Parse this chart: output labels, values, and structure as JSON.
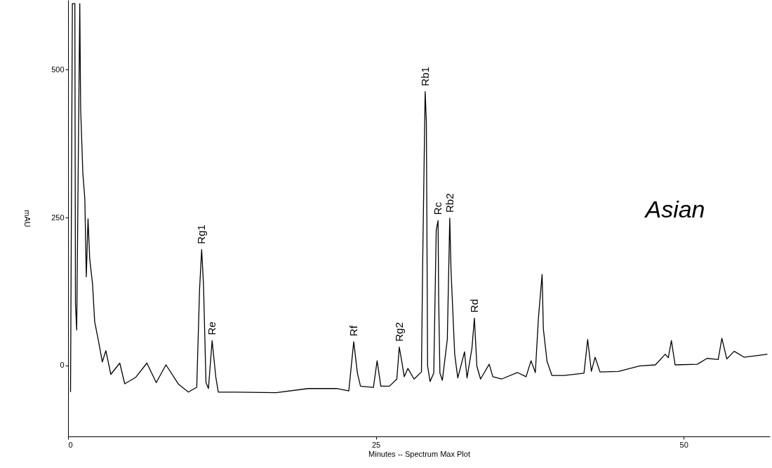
{
  "chart_data": {
    "type": "line",
    "xlabel": "Minutes -- Spectrum Max Plot",
    "ylabel": "mAU",
    "xlim": [
      0,
      57
    ],
    "ylim": [
      -120,
      618
    ],
    "xticks": [
      0,
      25,
      50
    ],
    "yticks": [
      0,
      250,
      500
    ],
    "line_style": "solid",
    "x": [
      0.2,
      0.35,
      0.55,
      0.6,
      0.7,
      0.95,
      1.02,
      1.2,
      1.36,
      1.48,
      1.62,
      1.76,
      1.99,
      2.16,
      2.49,
      2.78,
      3.07,
      3.47,
      4.2,
      4.6,
      5.5,
      6.4,
      7.16,
      7.95,
      8.98,
      9.77,
      10.45,
      10.68,
      10.85,
      11.0,
      11.2,
      11.4,
      11.7,
      12.0,
      12.2,
      13.6,
      16.9,
      19.5,
      21.8,
      22.8,
      23.2,
      23.5,
      23.75,
      24.8,
      25.1,
      25.4,
      26.1,
      26.7,
      26.9,
      27.1,
      27.3,
      27.6,
      28.1,
      28.7,
      28.8,
      29.0,
      29.1,
      29.2,
      29.4,
      29.7,
      29.9,
      30.05,
      30.1,
      30.2,
      30.4,
      30.8,
      31.0,
      31.1,
      31.4,
      31.65,
      32.2,
      32.4,
      32.8,
      33.0,
      33.2,
      33.5,
      34.2,
      34.5,
      35.2,
      36.5,
      37.2,
      37.6,
      37.95,
      38.2,
      38.5,
      38.6,
      38.9,
      39.3,
      40.3,
      41.9,
      42.2,
      42.5,
      42.8,
      43.2,
      44.7,
      46.4,
      47.7,
      48.5,
      48.75,
      49.0,
      49.3,
      51.1,
      51.9,
      52.8,
      53.1,
      53.5,
      54.1,
      54.9,
      56.8
    ],
    "series": [
      {
        "color": "#000000",
        "values": [
          -45,
          612,
          612,
          104,
          60,
          612,
          435,
          325,
          282,
          150,
          248,
          180,
          137,
          74,
          39,
          6,
          25,
          -15,
          4,
          -31,
          -20,
          4,
          -29,
          1,
          -32,
          -45,
          -37,
          129,
          196,
          136,
          -29,
          -39,
          42,
          -20,
          -45,
          -45,
          -46,
          -39,
          -39,
          -43,
          40,
          -13,
          -35,
          -37,
          8,
          -35,
          -35,
          -23,
          31,
          7,
          -19,
          -5,
          -23,
          -11,
          174,
          463,
          412,
          -1,
          -27,
          -13,
          229,
          245,
          110,
          -13,
          -25,
          44,
          249,
          162,
          19,
          -21,
          23,
          -21,
          29,
          80,
          -1,
          -23,
          2,
          -19,
          -23,
          -12,
          -19,
          8,
          -12,
          80,
          154,
          62,
          7,
          -17,
          -17,
          -13,
          44,
          -10,
          14,
          -11,
          -10,
          -1,
          1,
          19,
          13,
          42,
          1,
          2,
          12,
          10,
          46,
          11,
          24,
          14,
          19
        ]
      }
    ],
    "annotations": [
      {
        "text": "Rg1",
        "x": 10.85,
        "y": 196
      },
      {
        "text": "Re",
        "x": 11.7,
        "y": 42
      },
      {
        "text": "Rf",
        "x": 23.2,
        "y": 40
      },
      {
        "text": "Rg2",
        "x": 26.9,
        "y": 31
      },
      {
        "text": "Rb1",
        "x": 29.0,
        "y": 463
      },
      {
        "text": "Rc",
        "x": 30.05,
        "y": 245
      },
      {
        "text": "Rb2",
        "x": 31.0,
        "y": 249
      },
      {
        "text": "Rd",
        "x": 33.0,
        "y": 80
      },
      "Asian"
    ]
  }
}
